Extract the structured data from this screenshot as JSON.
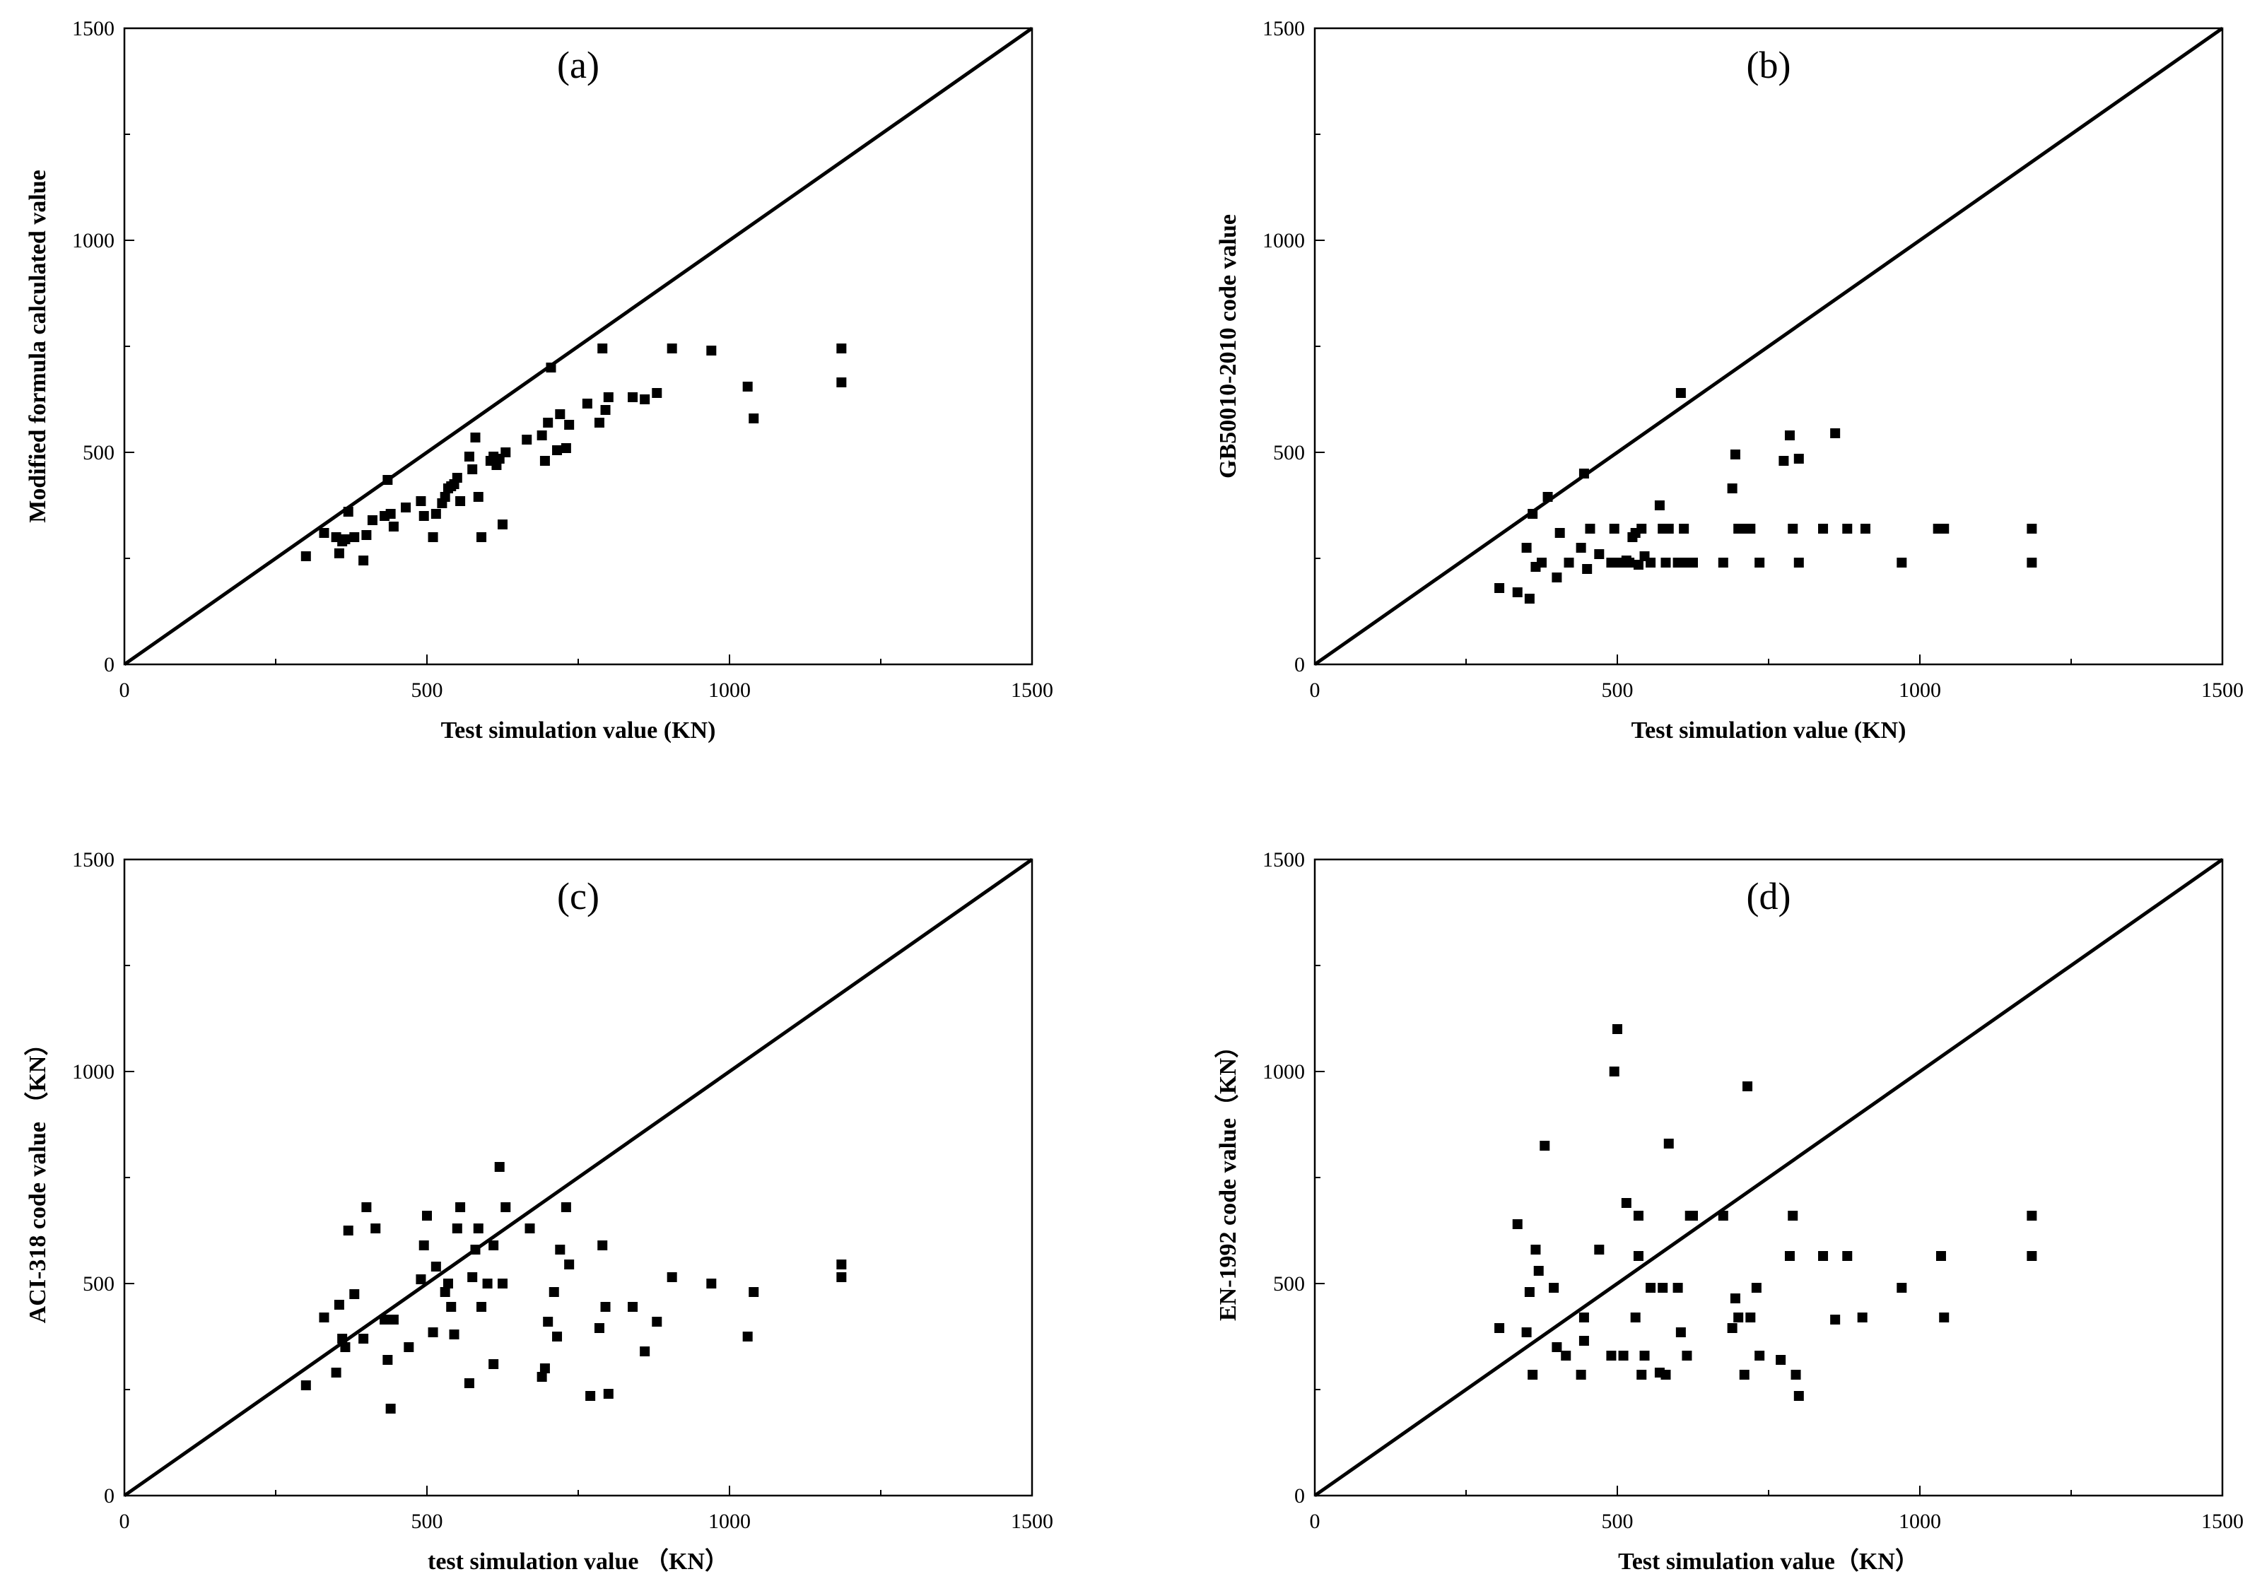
{
  "chart_data": [
    {
      "type": "scatter",
      "panel_label": "(a)",
      "xlabel": "Test simulation value (KN)",
      "ylabel": "Modified formula calculated value",
      "xlim": [
        0,
        1500
      ],
      "ylim": [
        0,
        1500
      ],
      "xticks": [
        "0",
        "500",
        "1000",
        "1500"
      ],
      "yticks": [
        "0",
        "500",
        "1000",
        "1500"
      ],
      "reference_line": {
        "from": [
          0,
          0
        ],
        "to": [
          1500,
          1500
        ]
      },
      "points": [
        [
          300,
          255
        ],
        [
          330,
          310
        ],
        [
          350,
          300
        ],
        [
          355,
          262
        ],
        [
          360,
          290
        ],
        [
          365,
          295
        ],
        [
          370,
          360
        ],
        [
          380,
          300
        ],
        [
          395,
          245
        ],
        [
          400,
          305
        ],
        [
          410,
          340
        ],
        [
          430,
          350
        ],
        [
          435,
          435
        ],
        [
          440,
          355
        ],
        [
          445,
          325
        ],
        [
          465,
          370
        ],
        [
          490,
          385
        ],
        [
          495,
          350
        ],
        [
          510,
          300
        ],
        [
          515,
          355
        ],
        [
          525,
          380
        ],
        [
          530,
          395
        ],
        [
          535,
          415
        ],
        [
          540,
          420
        ],
        [
          545,
          425
        ],
        [
          550,
          440
        ],
        [
          555,
          385
        ],
        [
          570,
          490
        ],
        [
          575,
          460
        ],
        [
          580,
          535
        ],
        [
          585,
          395
        ],
        [
          590,
          300
        ],
        [
          605,
          480
        ],
        [
          610,
          490
        ],
        [
          615,
          470
        ],
        [
          620,
          485
        ],
        [
          625,
          330
        ],
        [
          630,
          500
        ],
        [
          665,
          530
        ],
        [
          690,
          540
        ],
        [
          695,
          480
        ],
        [
          700,
          570
        ],
        [
          705,
          700
        ],
        [
          715,
          505
        ],
        [
          720,
          590
        ],
        [
          730,
          510
        ],
        [
          735,
          565
        ],
        [
          765,
          615
        ],
        [
          785,
          570
        ],
        [
          790,
          745
        ],
        [
          795,
          600
        ],
        [
          800,
          630
        ],
        [
          840,
          630
        ],
        [
          860,
          625
        ],
        [
          880,
          640
        ],
        [
          905,
          745
        ],
        [
          970,
          740
        ],
        [
          1030,
          655
        ],
        [
          1040,
          580
        ],
        [
          1185,
          745
        ],
        [
          1185,
          665
        ]
      ]
    },
    {
      "type": "scatter",
      "panel_label": "(b)",
      "xlabel": "Test simulation value (KN)",
      "ylabel": "GB50010-2010 code value",
      "xlim": [
        0,
        1500
      ],
      "ylim": [
        0,
        1500
      ],
      "xticks": [
        "0",
        "500",
        "1000",
        "1500"
      ],
      "yticks": [
        "0",
        "500",
        "1000",
        "1500"
      ],
      "reference_line": {
        "from": [
          0,
          0
        ],
        "to": [
          1500,
          1500
        ]
      },
      "points": [
        [
          305,
          180
        ],
        [
          335,
          170
        ],
        [
          350,
          275
        ],
        [
          355,
          155
        ],
        [
          360,
          355
        ],
        [
          365,
          230
        ],
        [
          375,
          240
        ],
        [
          385,
          395
        ],
        [
          400,
          205
        ],
        [
          405,
          310
        ],
        [
          420,
          240
        ],
        [
          440,
          275
        ],
        [
          445,
          450
        ],
        [
          450,
          225
        ],
        [
          455,
          320
        ],
        [
          470,
          260
        ],
        [
          490,
          240
        ],
        [
          495,
          320
        ],
        [
          505,
          240
        ],
        [
          515,
          245
        ],
        [
          520,
          240
        ],
        [
          525,
          300
        ],
        [
          530,
          310
        ],
        [
          535,
          235
        ],
        [
          540,
          320
        ],
        [
          545,
          255
        ],
        [
          555,
          240
        ],
        [
          570,
          375
        ],
        [
          575,
          320
        ],
        [
          580,
          240
        ],
        [
          585,
          320
        ],
        [
          600,
          240
        ],
        [
          605,
          640
        ],
        [
          610,
          320
        ],
        [
          615,
          240
        ],
        [
          620,
          240
        ],
        [
          625,
          240
        ],
        [
          675,
          240
        ],
        [
          690,
          415
        ],
        [
          695,
          495
        ],
        [
          700,
          320
        ],
        [
          710,
          320
        ],
        [
          720,
          320
        ],
        [
          735,
          240
        ],
        [
          775,
          480
        ],
        [
          785,
          540
        ],
        [
          790,
          320
        ],
        [
          800,
          240
        ],
        [
          800,
          485
        ],
        [
          840,
          320
        ],
        [
          860,
          545
        ],
        [
          880,
          320
        ],
        [
          910,
          320
        ],
        [
          970,
          240
        ],
        [
          1030,
          320
        ],
        [
          1040,
          320
        ],
        [
          1185,
          320
        ],
        [
          1185,
          240
        ]
      ]
    },
    {
      "type": "scatter",
      "panel_label": "(c)",
      "xlabel": "test simulation value （KN）",
      "ylabel": "ACI-318 code value （KN）",
      "xlim": [
        0,
        1500
      ],
      "ylim": [
        0,
        1500
      ],
      "xticks": [
        "0",
        "500",
        "1000",
        "1500"
      ],
      "yticks": [
        "0",
        "500",
        "1000",
        "1500"
      ],
      "reference_line": {
        "from": [
          0,
          0
        ],
        "to": [
          1500,
          1500
        ]
      },
      "points": [
        [
          300,
          260
        ],
        [
          330,
          420
        ],
        [
          350,
          290
        ],
        [
          355,
          450
        ],
        [
          360,
          370
        ],
        [
          365,
          350
        ],
        [
          370,
          625
        ],
        [
          380,
          475
        ],
        [
          395,
          370
        ],
        [
          400,
          680
        ],
        [
          415,
          630
        ],
        [
          430,
          415
        ],
        [
          435,
          320
        ],
        [
          440,
          205
        ],
        [
          445,
          415
        ],
        [
          470,
          350
        ],
        [
          490,
          510
        ],
        [
          495,
          590
        ],
        [
          500,
          660
        ],
        [
          510,
          385
        ],
        [
          515,
          540
        ],
        [
          530,
          480
        ],
        [
          535,
          500
        ],
        [
          540,
          445
        ],
        [
          545,
          380
        ],
        [
          550,
          630
        ],
        [
          555,
          680
        ],
        [
          570,
          265
        ],
        [
          575,
          515
        ],
        [
          580,
          580
        ],
        [
          585,
          630
        ],
        [
          590,
          445
        ],
        [
          600,
          500
        ],
        [
          610,
          590
        ],
        [
          610,
          310
        ],
        [
          620,
          775
        ],
        [
          625,
          500
        ],
        [
          630,
          680
        ],
        [
          670,
          630
        ],
        [
          690,
          280
        ],
        [
          695,
          300
        ],
        [
          700,
          410
        ],
        [
          710,
          480
        ],
        [
          715,
          375
        ],
        [
          720,
          580
        ],
        [
          730,
          680
        ],
        [
          735,
          545
        ],
        [
          770,
          235
        ],
        [
          785,
          395
        ],
        [
          790,
          590
        ],
        [
          795,
          445
        ],
        [
          800,
          240
        ],
        [
          840,
          445
        ],
        [
          860,
          340
        ],
        [
          880,
          410
        ],
        [
          905,
          515
        ],
        [
          970,
          500
        ],
        [
          1030,
          375
        ],
        [
          1040,
          480
        ],
        [
          1185,
          545
        ],
        [
          1185,
          515
        ]
      ]
    },
    {
      "type": "scatter",
      "panel_label": "(d)",
      "xlabel": "Test simulation value（KN）",
      "ylabel": "EN-1992 code value（KN）",
      "xlim": [
        0,
        1500
      ],
      "ylim": [
        0,
        1500
      ],
      "xticks": [
        "0",
        "500",
        "1000",
        "1500"
      ],
      "yticks": [
        "0",
        "500",
        "1000",
        "1500"
      ],
      "reference_line": {
        "from": [
          0,
          0
        ],
        "to": [
          1500,
          1500
        ]
      },
      "points": [
        [
          305,
          395
        ],
        [
          335,
          640
        ],
        [
          350,
          385
        ],
        [
          355,
          480
        ],
        [
          360,
          285
        ],
        [
          365,
          580
        ],
        [
          370,
          530
        ],
        [
          380,
          825
        ],
        [
          395,
          490
        ],
        [
          400,
          350
        ],
        [
          415,
          330
        ],
        [
          440,
          285
        ],
        [
          445,
          365
        ],
        [
          445,
          420
        ],
        [
          470,
          580
        ],
        [
          490,
          330
        ],
        [
          495,
          1000
        ],
        [
          500,
          1100
        ],
        [
          510,
          330
        ],
        [
          515,
          690
        ],
        [
          530,
          420
        ],
        [
          535,
          565
        ],
        [
          535,
          660
        ],
        [
          540,
          285
        ],
        [
          545,
          330
        ],
        [
          555,
          490
        ],
        [
          570,
          290
        ],
        [
          575,
          490
        ],
        [
          580,
          285
        ],
        [
          585,
          830
        ],
        [
          600,
          490
        ],
        [
          605,
          385
        ],
        [
          615,
          330
        ],
        [
          620,
          660
        ],
        [
          625,
          660
        ],
        [
          675,
          660
        ],
        [
          690,
          395
        ],
        [
          695,
          465
        ],
        [
          700,
          420
        ],
        [
          710,
          285
        ],
        [
          715,
          965
        ],
        [
          720,
          420
        ],
        [
          730,
          490
        ],
        [
          735,
          330
        ],
        [
          770,
          320
        ],
        [
          785,
          565
        ],
        [
          790,
          660
        ],
        [
          795,
          285
        ],
        [
          800,
          235
        ],
        [
          840,
          565
        ],
        [
          860,
          415
        ],
        [
          880,
          565
        ],
        [
          905,
          420
        ],
        [
          970,
          490
        ],
        [
          1035,
          565
        ],
        [
          1040,
          420
        ],
        [
          1185,
          660
        ],
        [
          1185,
          565
        ]
      ]
    }
  ]
}
